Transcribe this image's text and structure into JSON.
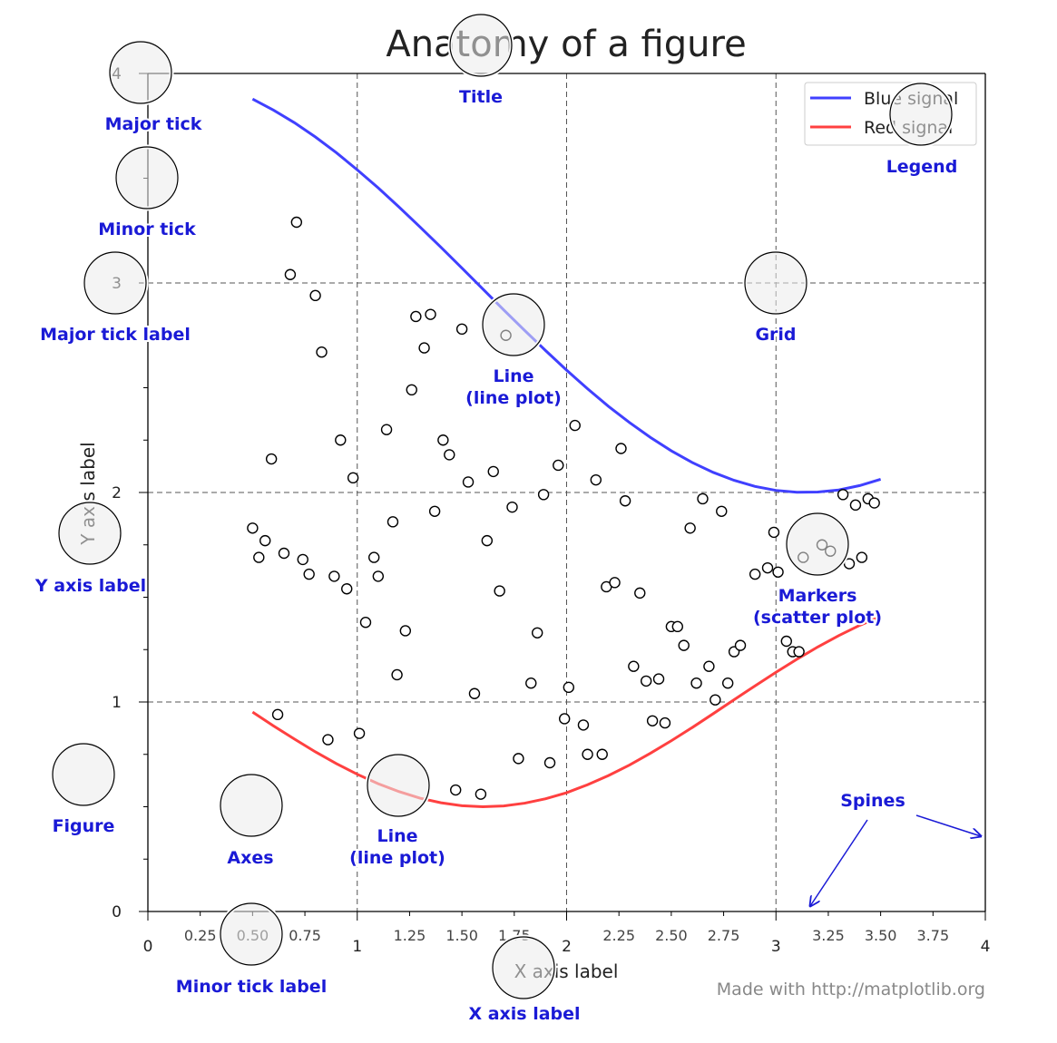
{
  "chart_data": {
    "type": "line",
    "title": "Anatomy of a figure",
    "xlabel": "X axis label",
    "ylabel": "Y axis label",
    "x": [
      0.5,
      0.6,
      0.7,
      0.8,
      0.9,
      1.0,
      1.1,
      1.2,
      1.3,
      1.4,
      1.5,
      1.6,
      1.7,
      1.8,
      1.9,
      2.0,
      2.1,
      2.2,
      2.3,
      2.4,
      2.5,
      2.6,
      2.7,
      2.8,
      2.9,
      3.0,
      3.1,
      3.2,
      3.3,
      3.4,
      3.5
    ],
    "series": [
      {
        "name": "Blue signal",
        "color": "#4040ff",
        "values": [
          3.878,
          3.825,
          3.765,
          3.697,
          3.622,
          3.54,
          3.454,
          3.362,
          3.267,
          3.17,
          3.071,
          2.971,
          2.871,
          2.773,
          2.677,
          2.584,
          2.495,
          2.411,
          2.334,
          2.263,
          2.199,
          2.143,
          2.096,
          2.058,
          2.029,
          2.01,
          2.001,
          2.002,
          2.012,
          2.033,
          2.063
        ]
      },
      {
        "name": "Red signal",
        "color": "#ff4040",
        "values": [
          0.952,
          0.886,
          0.823,
          0.762,
          0.706,
          0.655,
          0.61,
          0.572,
          0.541,
          0.519,
          0.505,
          0.5,
          0.504,
          0.517,
          0.538,
          0.567,
          0.605,
          0.649,
          0.699,
          0.755,
          0.815,
          0.878,
          0.944,
          1.011,
          1.077,
          1.142,
          1.204,
          1.263,
          1.317,
          1.366,
          1.408
        ]
      }
    ],
    "scatter": {
      "marker_face": "#ffffff",
      "marker_edge": "#000000",
      "x": [
        0.71,
        0.68,
        0.8,
        0.83,
        0.59,
        0.92,
        0.98,
        1.14,
        1.26,
        1.28,
        1.35,
        1.32,
        1.5,
        1.71,
        1.41,
        1.44,
        1.53,
        1.65,
        2.04,
        1.96,
        1.89,
        2.14,
        2.26,
        2.28,
        1.74,
        1.37,
        1.17,
        0.5,
        0.56,
        0.53,
        0.65,
        0.74,
        0.77,
        0.89,
        0.95,
        1.08,
        1.1,
        1.62,
        1.68,
        1.04,
        1.23,
        1.19,
        1.86,
        2.19,
        2.23,
        2.35,
        2.59,
        2.65,
        2.74,
        2.5,
        2.53,
        2.56,
        2.32,
        2.38,
        2.44,
        2.68,
        2.62,
        2.77,
        2.8,
        2.83,
        2.71,
        2.99,
        2.9,
        2.96,
        3.01,
        3.13,
        3.22,
        3.26,
        3.35,
        3.41,
        3.32,
        3.38,
        3.44,
        3.47,
        3.05,
        3.08,
        3.11,
        1.83,
        2.01,
        1.56,
        0.62,
        0.86,
        1.01,
        1.99,
        2.08,
        2.41,
        2.47,
        2.1,
        2.17,
        1.77,
        1.92,
        1.47,
        1.59
      ],
      "y": [
        3.29,
        3.04,
        2.94,
        2.67,
        2.16,
        2.25,
        2.07,
        2.3,
        2.49,
        2.84,
        2.85,
        2.69,
        2.78,
        2.75,
        2.25,
        2.18,
        2.05,
        2.1,
        2.32,
        2.13,
        1.99,
        2.06,
        2.21,
        1.96,
        1.93,
        1.91,
        1.86,
        1.83,
        1.77,
        1.69,
        1.71,
        1.68,
        1.61,
        1.6,
        1.54,
        1.69,
        1.6,
        1.77,
        1.53,
        1.38,
        1.34,
        1.13,
        1.33,
        1.55,
        1.57,
        1.52,
        1.83,
        1.97,
        1.91,
        1.36,
        1.36,
        1.27,
        1.17,
        1.1,
        1.11,
        1.17,
        1.09,
        1.09,
        1.24,
        1.27,
        1.01,
        1.81,
        1.61,
        1.64,
        1.62,
        1.69,
        1.75,
        1.72,
        1.66,
        1.69,
        1.99,
        1.94,
        1.97,
        1.95,
        1.29,
        1.24,
        1.24,
        1.09,
        1.07,
        1.04,
        0.94,
        0.82,
        0.85,
        0.92,
        0.89,
        0.91,
        0.9,
        0.75,
        0.75,
        0.73,
        0.71,
        0.58,
        0.56
      ]
    },
    "xlim": [
      0,
      4
    ],
    "ylim": [
      0,
      4
    ],
    "xticks": [
      0,
      1,
      2,
      3,
      4
    ],
    "xticks_minor": [
      0.25,
      {
        "value": 0.5,
        "label": "0.50"
      },
      0.75,
      1.25,
      {
        "value": 1.5,
        "label": "1.50"
      },
      1.75,
      2.25,
      {
        "value": 2.5,
        "label": "2.50"
      },
      2.75,
      3.25,
      {
        "value": 3.5,
        "label": "3.50"
      },
      3.75
    ],
    "yticks": [
      0,
      1,
      2,
      3,
      4
    ],
    "yticks_minor": [
      0.25,
      0.5,
      0.75,
      1.25,
      1.5,
      1.75,
      2.25,
      2.5,
      2.75,
      3.25,
      3.5,
      3.75
    ],
    "grid": true,
    "legend": "upper right",
    "footnote": "Made with http://matplotlib.org",
    "annotations": [
      [
        "Major tick"
      ],
      [
        "Minor tick"
      ],
      [
        "Major tick label"
      ],
      [
        "Y axis label"
      ],
      [
        "Figure"
      ],
      [
        "Axes"
      ],
      [
        "Minor tick label"
      ],
      [
        "X axis label"
      ],
      [
        "Title"
      ],
      [
        "Line",
        "(line plot)"
      ],
      [
        "Grid"
      ],
      [
        "Legend"
      ],
      [
        "Markers",
        "(scatter plot)"
      ],
      [
        "Line",
        "(line plot)"
      ],
      [
        "Spines"
      ]
    ]
  }
}
